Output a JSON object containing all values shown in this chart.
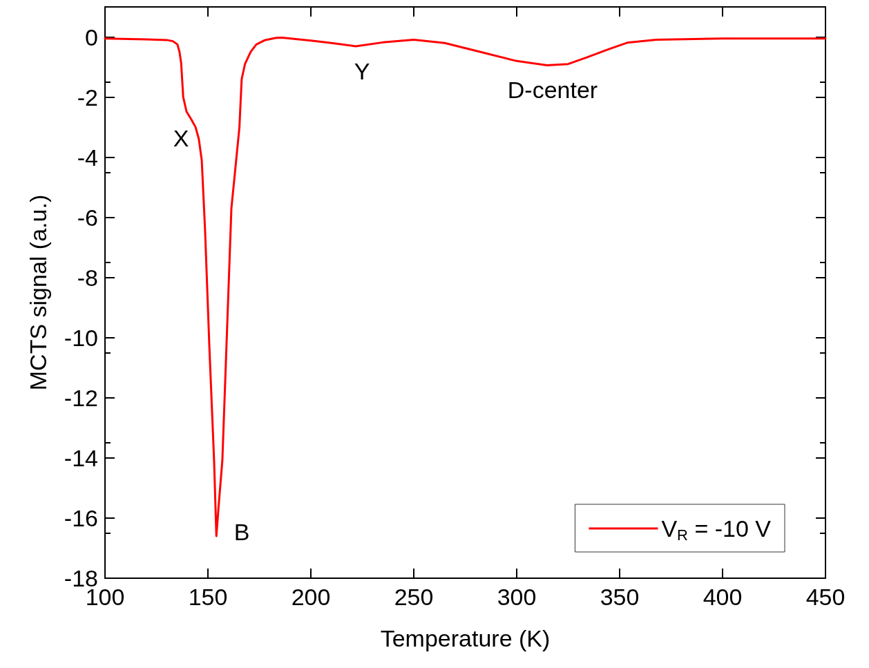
{
  "chart_data": {
    "type": "line",
    "xlabel": "Temperature (K)",
    "ylabel": "MCTS signal (a.u.)",
    "xlim": [
      100,
      450
    ],
    "xticks": [
      100,
      150,
      200,
      250,
      300,
      350,
      400,
      450
    ],
    "ylim": [
      -18,
      1
    ],
    "yticks": [
      -18,
      -16,
      -14,
      -12,
      -10,
      -8,
      -6,
      -4,
      -2,
      0
    ],
    "grid": false,
    "legend": "bottom right",
    "marker": "none",
    "line_style": "solid",
    "series": [
      {
        "name": "V$_{R}$ = -10 V",
        "color": "#ff0000",
        "x": [
          100,
          120,
          130,
          133,
          135.2,
          136.2,
          137,
          138,
          139.6,
          142,
          144,
          145.6,
          147,
          148.6,
          150.7,
          153,
          154.1,
          155.2,
          157,
          159,
          161.4,
          163,
          165.3,
          166.4,
          168,
          170.8,
          173.5,
          177.5,
          183.2,
          186,
          200,
          210,
          221.8,
          235,
          250,
          265,
          282.5,
          300,
          314.8,
          325,
          334,
          345,
          353.7,
          367.8,
          400,
          450
        ],
        "values": [
          -0.05,
          -0.08,
          -0.1,
          -0.14,
          -0.25,
          -0.5,
          -0.87,
          -2.0,
          -2.48,
          -2.75,
          -3.0,
          -3.4,
          -4.1,
          -6.4,
          -10.3,
          -14.1,
          -16.6,
          -15.6,
          -14.1,
          -10.3,
          -5.7,
          -4.6,
          -3.0,
          -1.4,
          -0.9,
          -0.49,
          -0.25,
          -0.11,
          -0.03,
          -0.02,
          -0.12,
          -0.2,
          -0.31,
          -0.18,
          -0.09,
          -0.2,
          -0.5,
          -0.8,
          -0.94,
          -0.9,
          -0.68,
          -0.4,
          -0.19,
          -0.09,
          -0.05,
          -0.05
        ]
      }
    ],
    "annotations": [
      "X",
      "B",
      "Y",
      "D-center"
    ]
  }
}
